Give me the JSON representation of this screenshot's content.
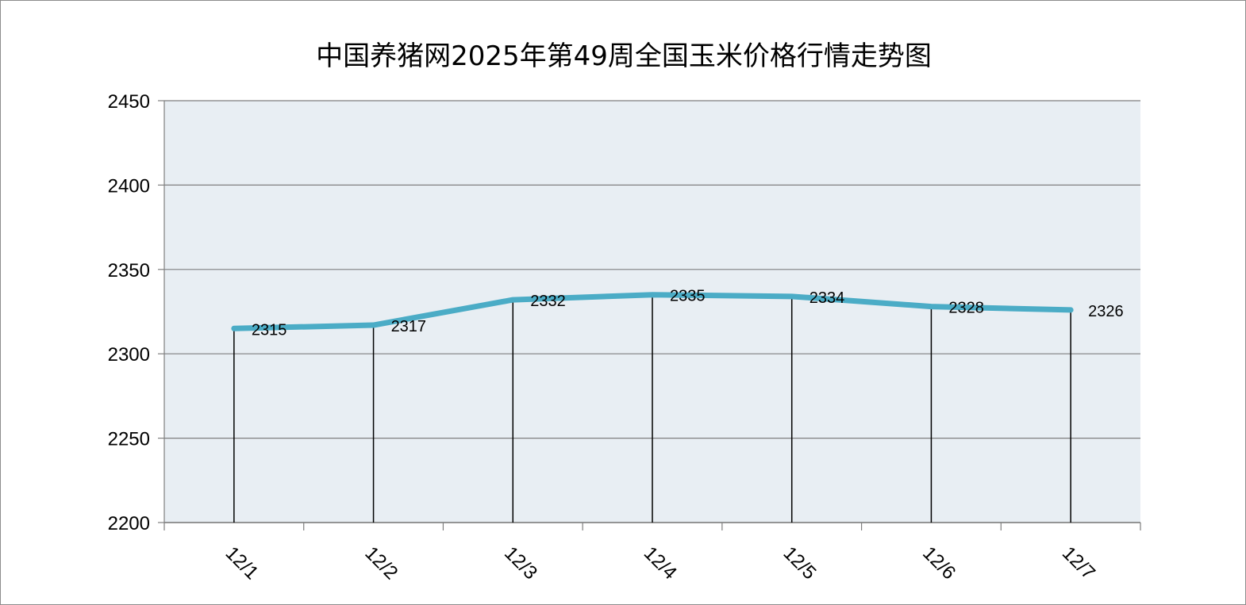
{
  "chart_data": {
    "type": "line",
    "title": "中国养猪网2025年第49周全国玉米价格行情走势图",
    "xlabel": "",
    "ylabel": "",
    "categories": [
      "12/1",
      "12/2",
      "12/3",
      "12/4",
      "12/5",
      "12/6",
      "12/7"
    ],
    "series": [
      {
        "values": [
          2315,
          2317,
          2332,
          2335,
          2334,
          2328,
          2326
        ]
      }
    ],
    "ylim": [
      2200,
      2450
    ],
    "yticks": [
      2200,
      2250,
      2300,
      2350,
      2400,
      2450
    ],
    "grid": true,
    "drop_lines": true,
    "data_labels": true,
    "legend": "none",
    "colors": {
      "line": "#4bacc6",
      "plot_background": "#e8eef3",
      "gridline": "#7f7f7f",
      "drop_line": "#000000"
    }
  }
}
